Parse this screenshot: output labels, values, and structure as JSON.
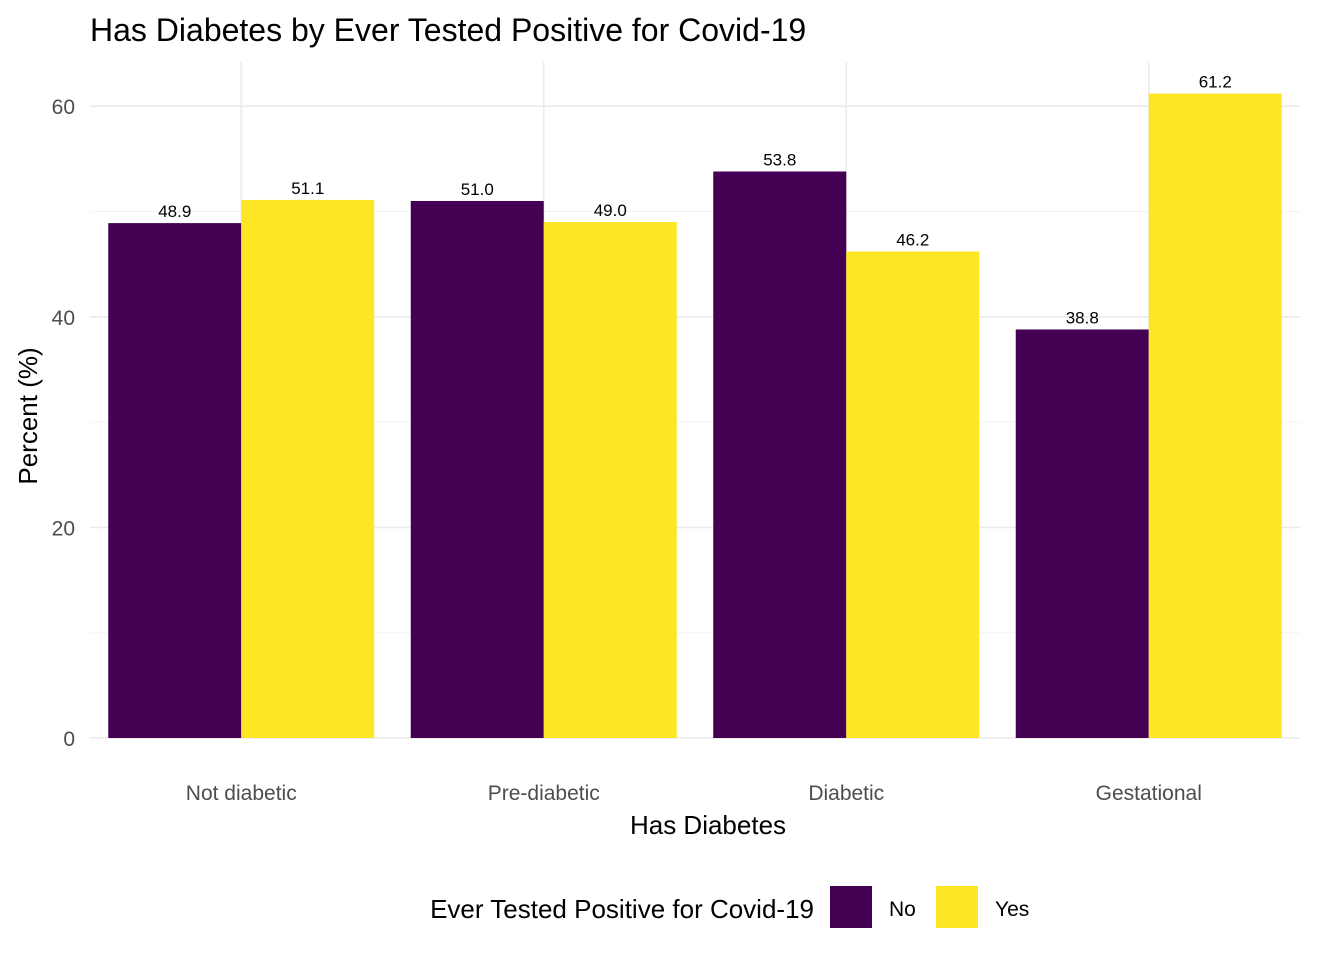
{
  "chart_data": {
    "type": "bar",
    "title": "Has Diabetes by Ever Tested Positive for Covid-19",
    "xlabel": "Has Diabetes",
    "ylabel": "Percent (%)",
    "categories": [
      "Not diabetic",
      "Pre-diabetic",
      "Diabetic",
      "Gestational"
    ],
    "series": [
      {
        "name": "No",
        "color": "#440154",
        "values": [
          48.9,
          51.0,
          53.8,
          38.8
        ],
        "labels": [
          "48.9",
          "51.0",
          "53.8",
          "38.8"
        ]
      },
      {
        "name": "Yes",
        "color": "#FDE725",
        "values": [
          51.1,
          49.0,
          46.2,
          61.2
        ],
        "labels": [
          "51.1",
          "49.0",
          "46.2",
          "61.2"
        ]
      }
    ],
    "yticks": [
      0,
      20,
      40,
      60
    ],
    "ytick_labels": [
      "0",
      "20",
      "40",
      "60"
    ],
    "ylim": [
      0,
      64.2
    ],
    "grid": true,
    "legend": {
      "title": "Ever Tested Positive for Covid-19",
      "placement": "bottom"
    }
  }
}
